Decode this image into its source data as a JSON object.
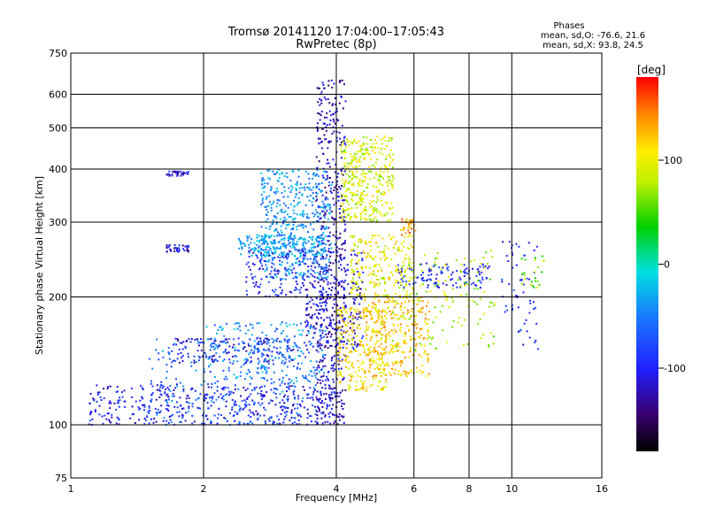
{
  "chart_data": {
    "type": "scatter",
    "title": "Tromsø 20141120 17:04:00–17:05:43",
    "subtitle": "RwPretec (8p)",
    "xlabel": "Frequency [MHz]",
    "ylabel": "Stationary phase Virtual Height [km]",
    "x_scale": "log",
    "y_scale": "log",
    "xlim": [
      1,
      16
    ],
    "ylim": [
      75,
      750
    ],
    "x_ticks": [
      1,
      2,
      4,
      6,
      8,
      10,
      16
    ],
    "y_ticks": [
      75,
      100,
      200,
      300,
      400,
      500,
      600,
      750
    ],
    "grid": true,
    "stats": {
      "title": "Phases",
      "line1": "mean, sd,O: -76.6, 21.6",
      "line2": "mean, sd,X:  93.8, 24.5"
    },
    "colorbar": {
      "label": "[deg]",
      "ticks": [
        "100",
        "0",
        "-100"
      ],
      "tick_values": [
        100,
        0,
        -100
      ],
      "range": [
        -180,
        180
      ],
      "colormap": "rainbow"
    },
    "clusters": [
      {
        "x0": 1.1,
        "x1": 4.0,
        "h0": 100,
        "h1": 125,
        "n": 420,
        "phase": -100
      },
      {
        "x0": 1.5,
        "x1": 3.6,
        "h0": 100,
        "h1": 160,
        "n": 260,
        "phase": -60
      },
      {
        "x0": 1.7,
        "x1": 3.2,
        "h0": 140,
        "h1": 160,
        "n": 140,
        "phase": -110
      },
      {
        "x0": 2.0,
        "x1": 3.8,
        "h0": 125,
        "h1": 175,
        "n": 200,
        "phase": -40
      },
      {
        "x0": 3.6,
        "x1": 4.2,
        "h0": 100,
        "h1": 650,
        "n": 520,
        "phase": -120
      },
      {
        "x0": 3.4,
        "x1": 4.6,
        "h0": 150,
        "h1": 260,
        "n": 260,
        "phase": -110
      },
      {
        "x0": 4.0,
        "x1": 5.2,
        "h0": 120,
        "h1": 190,
        "n": 260,
        "phase": 110
      },
      {
        "x0": 4.1,
        "x1": 5.4,
        "h0": 300,
        "h1": 480,
        "n": 360,
        "phase": 90
      },
      {
        "x0": 4.6,
        "x1": 6.5,
        "h0": 130,
        "h1": 200,
        "n": 300,
        "phase": 120
      },
      {
        "x0": 4.3,
        "x1": 6.0,
        "h0": 200,
        "h1": 280,
        "n": 220,
        "phase": 100
      },
      {
        "x0": 2.7,
        "x1": 3.9,
        "h0": 220,
        "h1": 400,
        "n": 460,
        "phase": -40
      },
      {
        "x0": 2.4,
        "x1": 3.8,
        "h0": 250,
        "h1": 280,
        "n": 180,
        "phase": -30
      },
      {
        "x0": 2.5,
        "x1": 3.4,
        "h0": 200,
        "h1": 260,
        "n": 120,
        "phase": -100
      },
      {
        "x0": 5.5,
        "x1": 9.0,
        "h0": 210,
        "h1": 240,
        "n": 110,
        "phase": -90
      },
      {
        "x0": 5.0,
        "x1": 9.2,
        "h0": 150,
        "h1": 260,
        "n": 150,
        "phase": 80
      },
      {
        "x0": 9.5,
        "x1": 11.5,
        "h0": 150,
        "h1": 270,
        "n": 60,
        "phase": -90
      },
      {
        "x0": 10.5,
        "x1": 12.0,
        "h0": 210,
        "h1": 250,
        "n": 25,
        "phase": 60
      },
      {
        "x0": 1.65,
        "x1": 1.85,
        "h0": 255,
        "h1": 265,
        "n": 40,
        "phase": -110
      },
      {
        "x0": 1.65,
        "x1": 1.85,
        "h0": 385,
        "h1": 395,
        "n": 35,
        "phase": -110
      },
      {
        "x0": 5.6,
        "x1": 6.1,
        "h0": 280,
        "h1": 305,
        "n": 30,
        "phase": 140
      }
    ]
  }
}
